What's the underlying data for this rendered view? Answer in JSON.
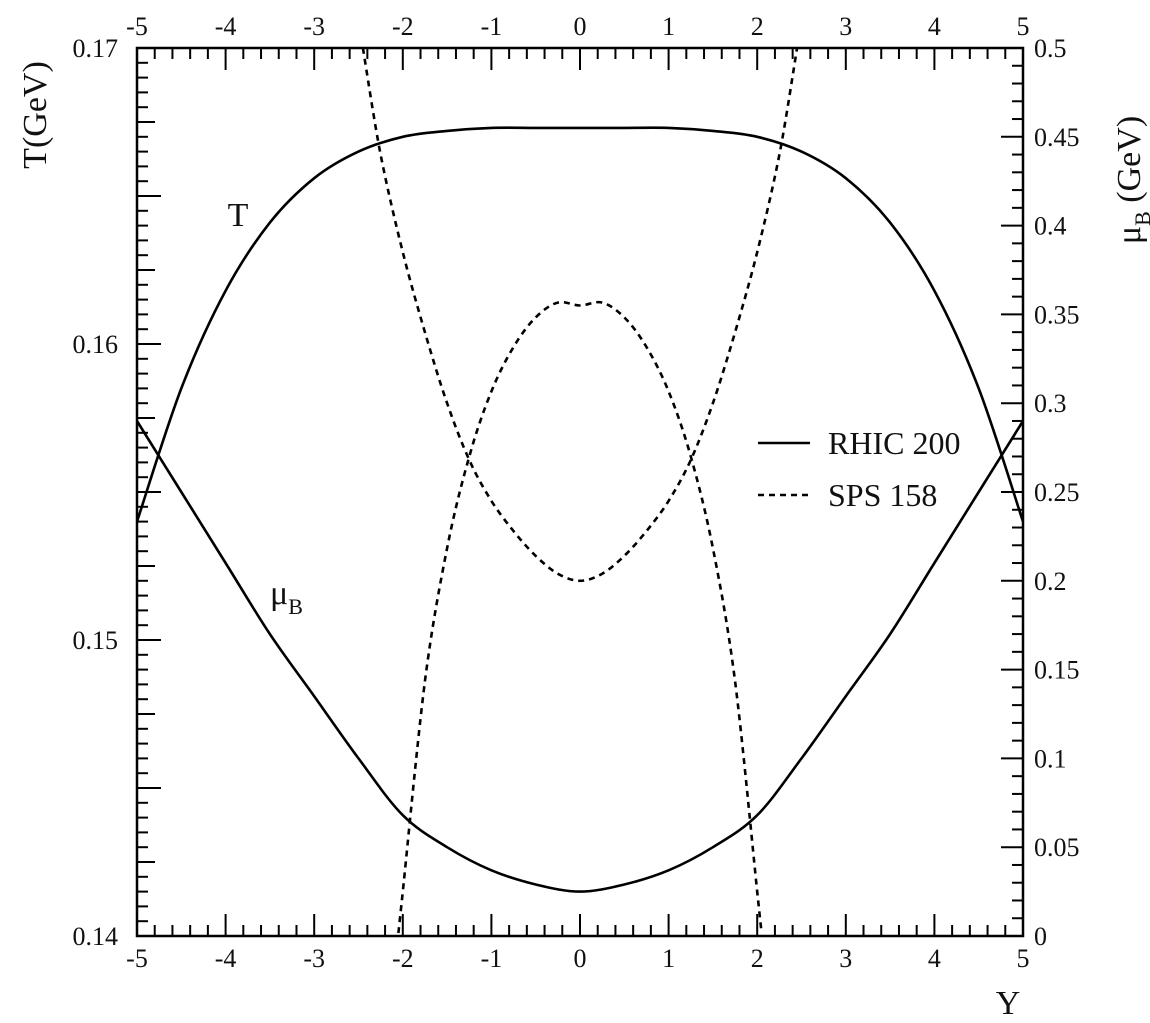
{
  "chart_data": {
    "type": "line",
    "x_axis": {
      "label": "Y",
      "range": [
        -5,
        5
      ],
      "ticks": [
        "-5",
        "-4",
        "-3",
        "-2",
        "-1",
        "0",
        "1",
        "2",
        "3",
        "4",
        "5"
      ]
    },
    "y_left": {
      "label": "T(GeV)",
      "range": [
        0.14,
        0.17
      ],
      "ticks": [
        "0.14",
        "0.15",
        "0.16",
        "0.17"
      ]
    },
    "y_right": {
      "label_main": "μ",
      "label_sub": "B",
      "label_unit": " (GeV)",
      "range": [
        0,
        0.5
      ],
      "ticks": [
        "0",
        "0.05",
        "0.1",
        "0.15",
        "0.2",
        "0.25",
        "0.3",
        "0.35",
        "0.4",
        "0.45",
        "0.5"
      ]
    },
    "annotations": {
      "T": "T",
      "muB_main": "μ",
      "muB_sub": "B"
    },
    "legend": {
      "placement": "right",
      "entries": [
        {
          "label": "RHIC 200",
          "style": "solid"
        },
        {
          "label": "SPS 158",
          "style": "dashed"
        }
      ]
    },
    "series": [
      {
        "label": "RHIC 200",
        "quantity": "T",
        "axis": "left",
        "style": "solid",
        "x": [
          -5,
          -4.5,
          -4,
          -3.5,
          -3,
          -2.5,
          -2,
          -1.5,
          -1,
          -0.5,
          0,
          0.5,
          1,
          1.5,
          2,
          2.5,
          3,
          3.5,
          4,
          4.5,
          5
        ],
        "y": [
          0.154,
          0.1585,
          0.1618,
          0.1641,
          0.1656,
          0.1665,
          0.167,
          0.1672,
          0.1673,
          0.1673,
          0.1673,
          0.1673,
          0.1673,
          0.1672,
          0.167,
          0.1665,
          0.1656,
          0.1641,
          0.1618,
          0.1585,
          0.154
        ]
      },
      {
        "label": "RHIC 200",
        "quantity": "muB",
        "axis": "right",
        "style": "solid",
        "x": [
          -5,
          -4.5,
          -4,
          -3.5,
          -3,
          -2.5,
          -2,
          -1.5,
          -1,
          -0.5,
          0,
          0.5,
          1,
          1.5,
          2,
          2.5,
          3,
          3.5,
          4,
          4.5,
          5
        ],
        "y": [
          0.29,
          0.25,
          0.21,
          0.17,
          0.135,
          0.1,
          0.068,
          0.05,
          0.037,
          0.029,
          0.025,
          0.029,
          0.037,
          0.05,
          0.068,
          0.1,
          0.135,
          0.17,
          0.21,
          0.25,
          0.29
        ]
      },
      {
        "label": "SPS 158",
        "quantity": "T",
        "axis": "left",
        "style": "dashed",
        "x": [
          -2.05,
          -2,
          -1.75,
          -1.5,
          -1.25,
          -1,
          -0.75,
          -0.5,
          -0.25,
          0,
          0.25,
          0.5,
          0.75,
          1,
          1.25,
          1.5,
          1.75,
          2,
          2.05
        ],
        "y": [
          0.1401,
          0.1415,
          0.1486,
          0.1531,
          0.1562,
          0.1584,
          0.1599,
          0.1609,
          0.1614,
          0.1613,
          0.1614,
          0.1609,
          0.1599,
          0.1584,
          0.1562,
          0.1531,
          0.1486,
          0.1415,
          0.1401
        ]
      },
      {
        "label": "SPS 158",
        "quantity": "muB",
        "axis": "right",
        "style": "dashed",
        "x": [
          -2.45,
          -2.25,
          -2,
          -1.75,
          -1.5,
          -1.25,
          -1,
          -0.75,
          -0.5,
          -0.25,
          0,
          0.25,
          0.5,
          0.75,
          1,
          1.25,
          1.5,
          1.75,
          2,
          2.25,
          2.45
        ],
        "y": [
          0.5,
          0.44,
          0.385,
          0.34,
          0.3,
          0.268,
          0.245,
          0.228,
          0.214,
          0.204,
          0.2,
          0.204,
          0.214,
          0.228,
          0.245,
          0.268,
          0.3,
          0.34,
          0.385,
          0.44,
          0.5
        ]
      }
    ]
  }
}
